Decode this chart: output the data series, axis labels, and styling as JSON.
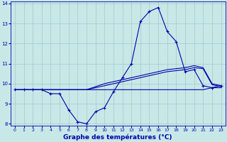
{
  "xlabel": "Graphe des températures (°C)",
  "bg_color": "#c8e8e8",
  "line_color": "#0000aa",
  "hours": [
    0,
    1,
    2,
    3,
    4,
    5,
    6,
    7,
    8,
    9,
    10,
    11,
    12,
    13,
    14,
    15,
    16,
    17,
    18,
    19,
    20,
    21,
    22,
    23
  ],
  "actual_temps": [
    9.7,
    9.7,
    9.7,
    9.7,
    9.5,
    9.5,
    8.7,
    8.1,
    8.0,
    8.6,
    8.8,
    9.6,
    10.3,
    11.0,
    13.1,
    13.6,
    13.8,
    12.6,
    12.1,
    10.6,
    10.7,
    9.9,
    9.8,
    9.9
  ],
  "line1": [
    9.7,
    9.7,
    9.7,
    9.7,
    9.7,
    9.7,
    9.7,
    9.7,
    9.7,
    9.7,
    9.7,
    9.7,
    9.7,
    9.7,
    9.7,
    9.7,
    9.7,
    9.7,
    9.7,
    9.7,
    9.7,
    9.7,
    9.8,
    9.8
  ],
  "line2": [
    9.7,
    9.7,
    9.7,
    9.7,
    9.7,
    9.7,
    9.7,
    9.7,
    9.7,
    9.8,
    9.9,
    10.0,
    10.1,
    10.2,
    10.3,
    10.4,
    10.5,
    10.6,
    10.65,
    10.7,
    10.8,
    10.75,
    9.95,
    9.85
  ],
  "line3": [
    9.7,
    9.7,
    9.7,
    9.7,
    9.7,
    9.7,
    9.7,
    9.7,
    9.7,
    9.85,
    10.0,
    10.1,
    10.2,
    10.3,
    10.4,
    10.5,
    10.6,
    10.7,
    10.75,
    10.8,
    10.9,
    10.8,
    10.0,
    9.9
  ],
  "ylim": [
    7.9,
    14.1
  ],
  "yticks": [
    8,
    9,
    10,
    11,
    12,
    13,
    14
  ],
  "xticks": [
    0,
    1,
    2,
    3,
    4,
    5,
    6,
    7,
    8,
    9,
    10,
    11,
    12,
    13,
    14,
    15,
    16,
    17,
    18,
    19,
    20,
    21,
    22,
    23
  ],
  "grid_color": "#a0c8c8",
  "xlabel_color": "#0000aa",
  "tick_label_color": "#0000aa"
}
